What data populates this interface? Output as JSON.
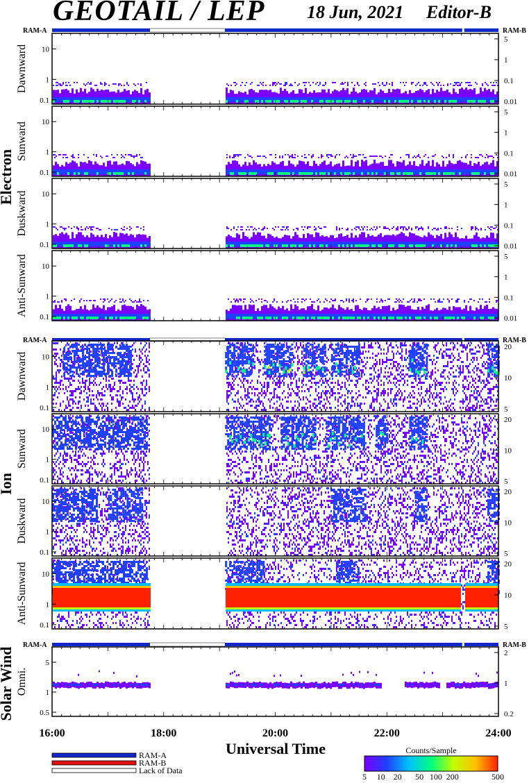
{
  "header": {
    "title": "GEOTAIL / LEP",
    "date": "18 Jun, 2021",
    "editor": "Editor-B"
  },
  "chart_data": {
    "type": "heatmap",
    "xlabel": "Universal Time",
    "x_ticks": [
      "16:00",
      "18:00",
      "20:00",
      "22:00",
      "24:00"
    ],
    "gap_hours": [
      17.75,
      19.1
    ],
    "groups": [
      {
        "name": "Electron",
        "panels": [
          {
            "ylabel": "Dawnward",
            "left_ticks": [
              "10",
              "1",
              "0.1"
            ],
            "right_ticks": [
              "5",
              "1",
              "0.1",
              "0.01"
            ]
          },
          {
            "ylabel": "Sunward",
            "left_ticks": [
              "10",
              "1",
              "0.1"
            ],
            "right_ticks": [
              "5",
              "1",
              "0.1",
              "0.01"
            ]
          },
          {
            "ylabel": "Duskward",
            "left_ticks": [
              "10",
              "1",
              "0.1"
            ],
            "right_ticks": [
              "5",
              "1",
              "0.1",
              "0.01"
            ]
          },
          {
            "ylabel": "Anti-Sunward",
            "left_ticks": [
              "10",
              "1",
              "0.1"
            ],
            "right_ticks": [
              "5",
              "1",
              "0.1",
              "0.01"
            ]
          }
        ]
      },
      {
        "name": "Ion",
        "panels": [
          {
            "ylabel": "Dawnward",
            "left_ticks": [
              "10",
              "1",
              "0.1"
            ],
            "right_ticks": [
              "20",
              "10",
              "5"
            ]
          },
          {
            "ylabel": "Sunward",
            "left_ticks": [
              "10",
              "1",
              "0.1"
            ],
            "right_ticks": [
              "20",
              "10",
              "5"
            ]
          },
          {
            "ylabel": "Duskward",
            "left_ticks": [
              "10",
              "1",
              "0.1"
            ],
            "right_ticks": [
              "20",
              "10",
              "5"
            ]
          },
          {
            "ylabel": "Anti-Sunward",
            "left_ticks": [
              "10",
              "1",
              "0.1"
            ],
            "right_ticks": [
              "20",
              "10",
              "5"
            ]
          }
        ]
      },
      {
        "name": "Solar Wind",
        "panels": [
          {
            "ylabel": "Omni.",
            "left_ticks": [
              "5",
              "1",
              "0.5"
            ],
            "right_ticks": [
              "2",
              "1",
              "0.2"
            ]
          }
        ]
      }
    ],
    "ram_labels": {
      "left": "RAM-A",
      "right": "RAM-B"
    },
    "legend": [
      "RAM-A",
      "RAM-B",
      "Lack of Data"
    ],
    "legend_colors": {
      "ram_a": "#1028c8",
      "ram_b": "#e01010",
      "lack": "#ffffff"
    },
    "colorbar": {
      "title": "Counts/Sample",
      "ticks": [
        "5",
        "10",
        "20",
        "50",
        "100",
        "200",
        "500"
      ],
      "colors": [
        "#7a00ff",
        "#2040ff",
        "#00c0ff",
        "#00ff80",
        "#c0ff00",
        "#ffc000",
        "#ff2000"
      ]
    }
  }
}
